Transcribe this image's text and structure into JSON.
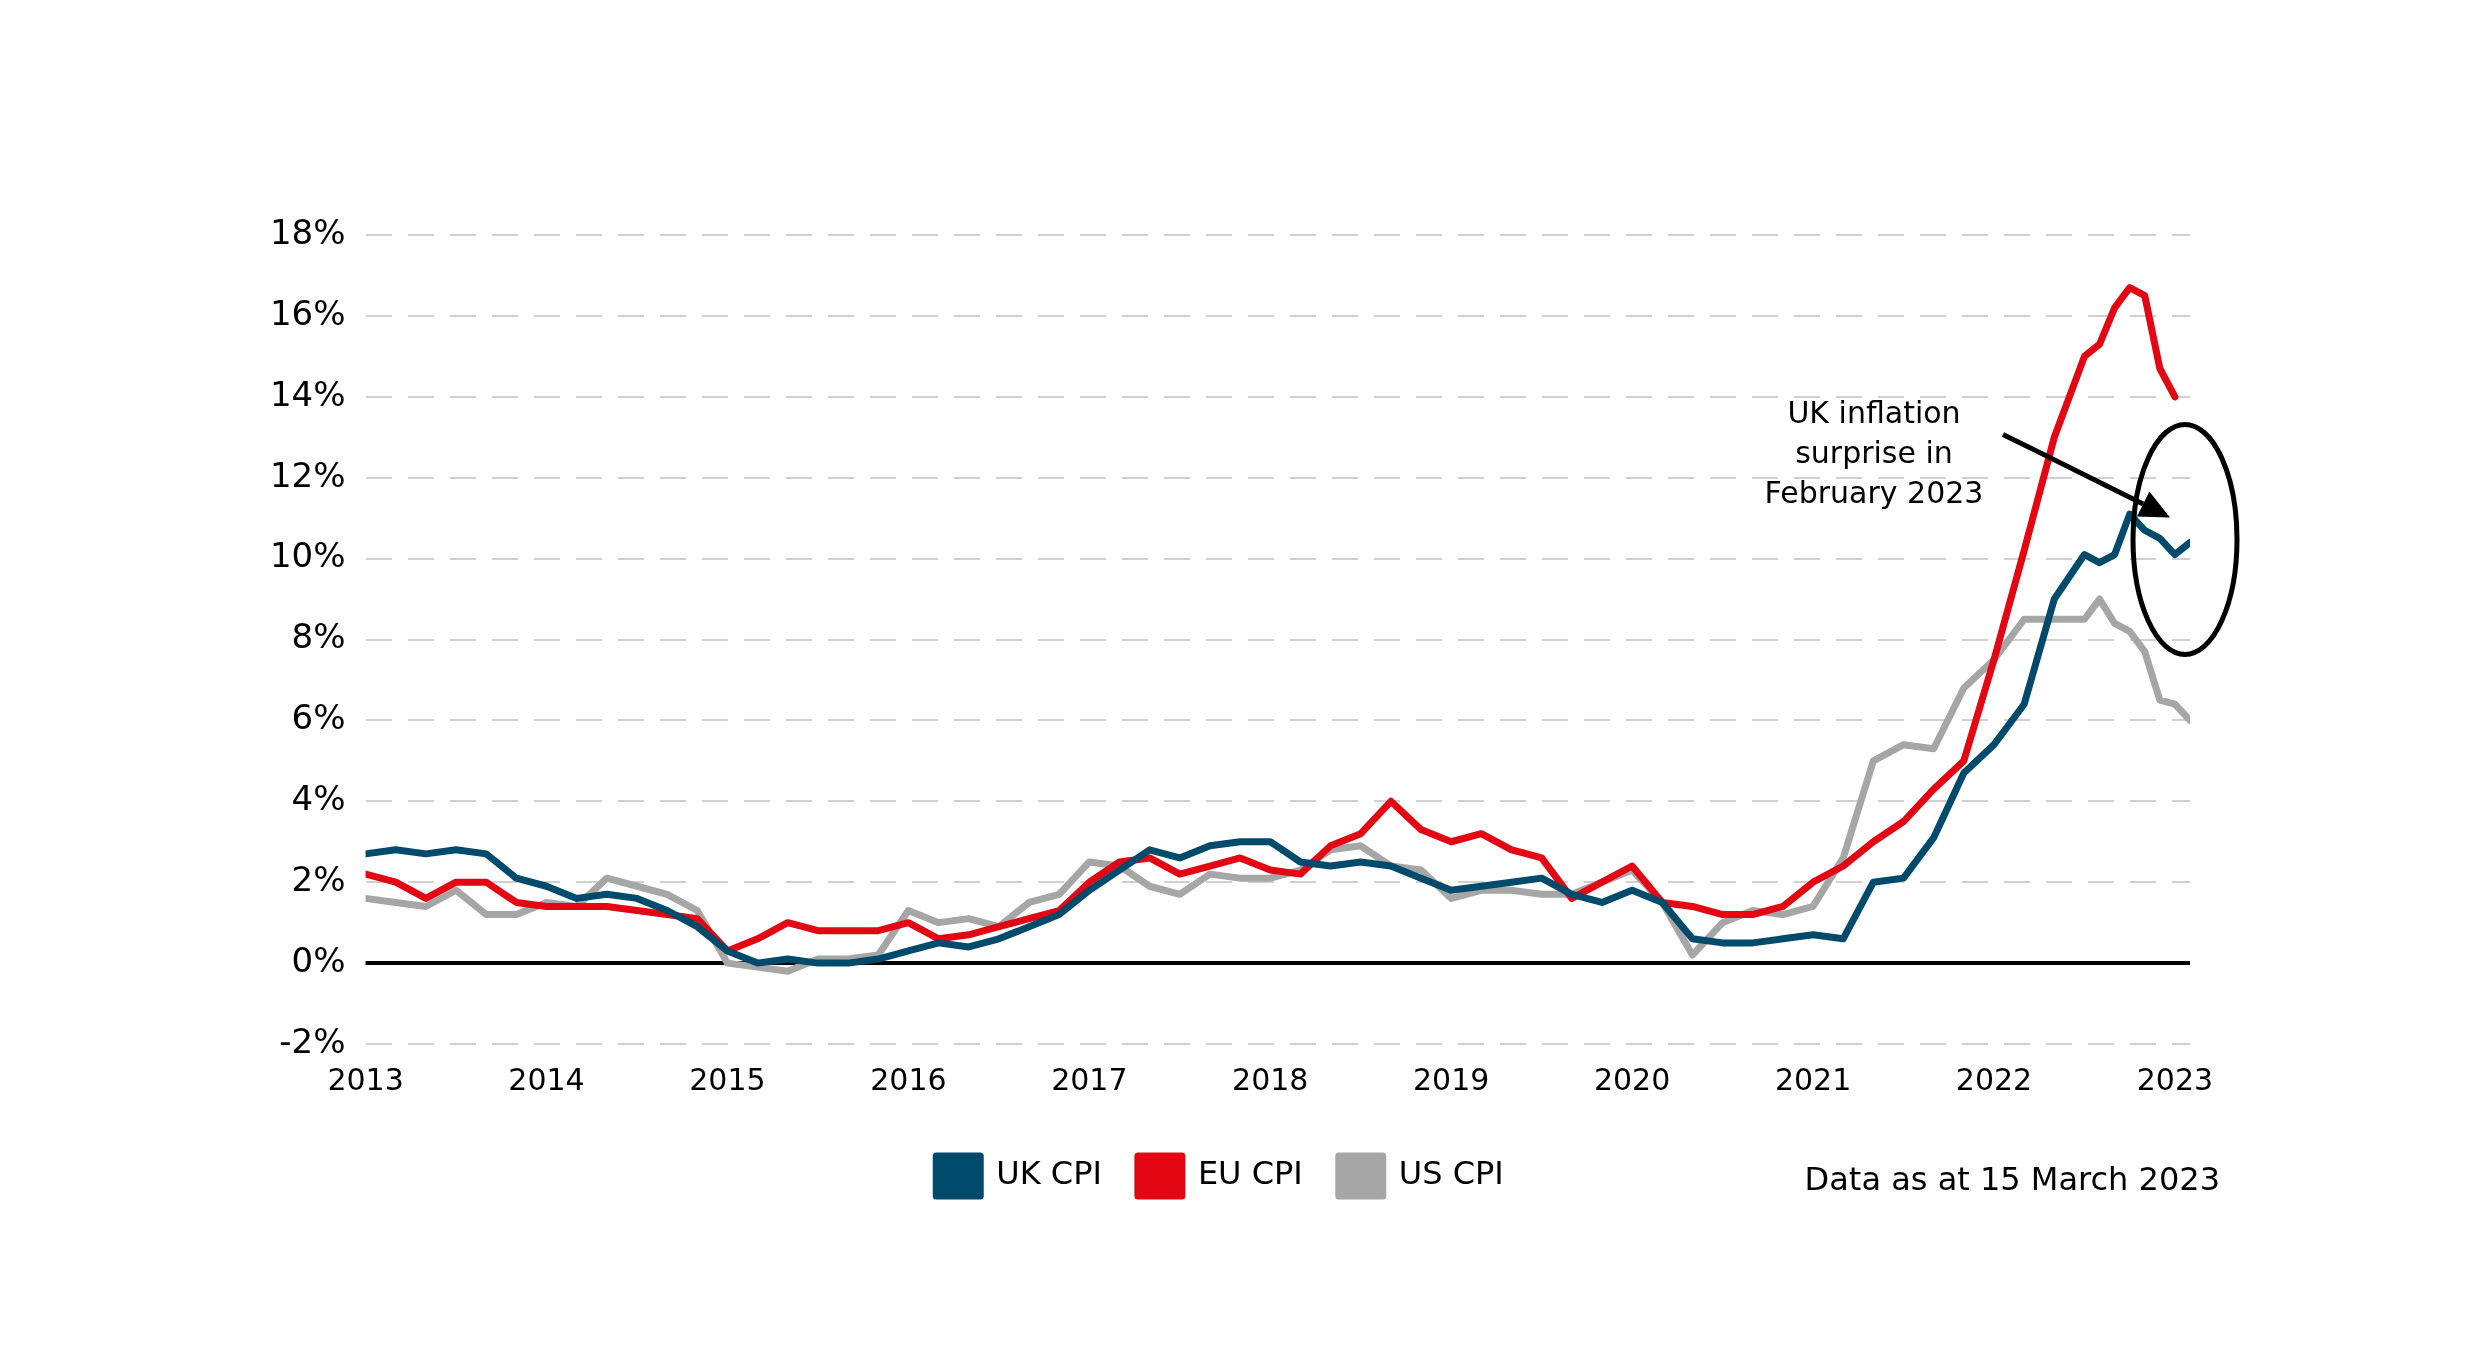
{
  "chart_data": {
    "type": "line",
    "x": [
      "2013-01",
      "2013-03",
      "2013-05",
      "2013-07",
      "2013-09",
      "2013-11",
      "2014-01",
      "2014-03",
      "2014-05",
      "2014-07",
      "2014-09",
      "2014-11",
      "2015-01",
      "2015-03",
      "2015-05",
      "2015-07",
      "2015-09",
      "2015-11",
      "2016-01",
      "2016-03",
      "2016-05",
      "2016-07",
      "2016-09",
      "2016-11",
      "2017-01",
      "2017-03",
      "2017-05",
      "2017-07",
      "2017-09",
      "2017-11",
      "2018-01",
      "2018-03",
      "2018-05",
      "2018-07",
      "2018-09",
      "2018-11",
      "2019-01",
      "2019-03",
      "2019-05",
      "2019-07",
      "2019-09",
      "2019-11",
      "2020-01",
      "2020-03",
      "2020-05",
      "2020-07",
      "2020-09",
      "2020-11",
      "2021-01",
      "2021-03",
      "2021-05",
      "2021-07",
      "2021-09",
      "2021-11",
      "2022-01",
      "2022-03",
      "2022-05",
      "2022-07",
      "2022-08",
      "2022-09",
      "2022-10",
      "2022-11",
      "2022-12",
      "2023-01",
      "2023-02"
    ],
    "series": [
      {
        "name": "UK CPI",
        "color": "#004b6b",
        "values": [
          2.7,
          2.8,
          2.7,
          2.8,
          2.7,
          2.1,
          1.9,
          1.6,
          1.7,
          1.6,
          1.3,
          0.9,
          0.3,
          0.0,
          0.1,
          0.0,
          0.0,
          0.1,
          0.3,
          0.5,
          0.4,
          0.6,
          0.9,
          1.2,
          1.8,
          2.3,
          2.8,
          2.6,
          2.9,
          3.0,
          3.0,
          2.5,
          2.4,
          2.5,
          2.4,
          2.1,
          1.8,
          1.9,
          2.0,
          2.1,
          1.7,
          1.5,
          1.8,
          1.5,
          0.6,
          0.5,
          0.5,
          0.6,
          0.7,
          0.6,
          2.0,
          2.1,
          3.1,
          4.7,
          5.4,
          6.4,
          9.0,
          10.1,
          9.9,
          10.1,
          11.1,
          10.7,
          10.5,
          10.1,
          10.4
        ]
      },
      {
        "name": "EU CPI",
        "color": "#e30613",
        "values": [
          2.2,
          2.0,
          1.6,
          2.0,
          2.0,
          1.5,
          1.4,
          1.4,
          1.4,
          1.3,
          1.2,
          1.1,
          0.3,
          0.6,
          1.0,
          0.8,
          0.8,
          0.8,
          1.0,
          0.6,
          0.7,
          0.9,
          1.1,
          1.3,
          2.0,
          2.5,
          2.6,
          2.2,
          2.4,
          2.6,
          2.3,
          2.2,
          2.9,
          3.2,
          4.0,
          3.3,
          3.0,
          3.2,
          2.8,
          2.6,
          1.6,
          2.0,
          2.4,
          1.5,
          1.4,
          1.2,
          1.2,
          1.4,
          2.0,
          2.4,
          3.0,
          3.5,
          4.3,
          5.0,
          7.5,
          10.2,
          13.0,
          15.0,
          15.3,
          16.2,
          16.7,
          16.5,
          14.7,
          14.0,
          null
        ]
      },
      {
        "name": "US CPI",
        "color": "#a6a6a6",
        "values": [
          1.6,
          1.5,
          1.4,
          1.8,
          1.2,
          1.2,
          1.5,
          1.4,
          2.1,
          1.9,
          1.7,
          1.3,
          0.0,
          -0.1,
          -0.2,
          0.1,
          0.1,
          0.2,
          1.3,
          1.0,
          1.1,
          0.9,
          1.5,
          1.7,
          2.5,
          2.4,
          1.9,
          1.7,
          2.2,
          2.1,
          2.1,
          2.3,
          2.8,
          2.9,
          2.4,
          2.3,
          1.6,
          1.8,
          1.8,
          1.7,
          1.7,
          2.0,
          2.3,
          1.5,
          0.2,
          1.0,
          1.3,
          1.2,
          1.4,
          2.6,
          5.0,
          5.4,
          5.3,
          6.8,
          7.5,
          8.5,
          8.5,
          8.5,
          9.0,
          8.4,
          8.2,
          7.7,
          6.5,
          6.4,
          6.0
        ]
      }
    ],
    "xlim": [
      "2013-01",
      "2023-02"
    ],
    "xticks": [
      "2013",
      "2014",
      "2015",
      "2016",
      "2017",
      "2018",
      "2019",
      "2020",
      "2021",
      "2022",
      "2023"
    ],
    "ylim": [
      -2,
      18
    ],
    "yticks": [
      {
        "value": -2,
        "label": "-2%"
      },
      {
        "value": 0,
        "label": "0%"
      },
      {
        "value": 2,
        "label": "2%"
      },
      {
        "value": 4,
        "label": "4%"
      },
      {
        "value": 6,
        "label": "6%"
      },
      {
        "value": 8,
        "label": "8%"
      },
      {
        "value": 10,
        "label": "10%"
      },
      {
        "value": 12,
        "label": "12%"
      },
      {
        "value": 14,
        "label": "14%"
      },
      {
        "value": 16,
        "label": "16%"
      },
      {
        "value": 18,
        "label": "18%"
      }
    ],
    "ref_lines": [
      {
        "axis": "y",
        "value": 0,
        "color": "#000000"
      }
    ],
    "grid": "y",
    "legend": "bottom",
    "marker": "none",
    "line_style": "solid",
    "annotations": [
      "UK inflation surprise in February 2023",
      "Data as at 15 March 2023"
    ]
  }
}
